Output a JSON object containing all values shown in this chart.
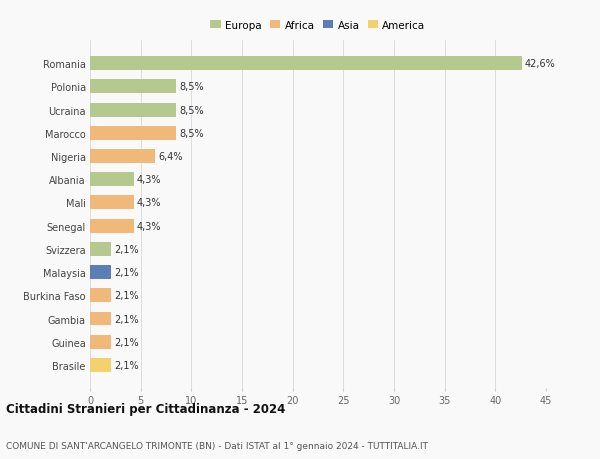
{
  "categories": [
    "Romania",
    "Polonia",
    "Ucraina",
    "Marocco",
    "Nigeria",
    "Albania",
    "Mali",
    "Senegal",
    "Svizzera",
    "Malaysia",
    "Burkina Faso",
    "Gambia",
    "Guinea",
    "Brasile"
  ],
  "values": [
    42.6,
    8.5,
    8.5,
    8.5,
    6.4,
    4.3,
    4.3,
    4.3,
    2.1,
    2.1,
    2.1,
    2.1,
    2.1,
    2.1
  ],
  "labels": [
    "42,6%",
    "8,5%",
    "8,5%",
    "8,5%",
    "6,4%",
    "4,3%",
    "4,3%",
    "4,3%",
    "2,1%",
    "2,1%",
    "2,1%",
    "2,1%",
    "2,1%",
    "2,1%"
  ],
  "colors": [
    "#b5c98e",
    "#b5c98e",
    "#b5c98e",
    "#f0b97a",
    "#f0b97a",
    "#b5c98e",
    "#f0b97a",
    "#f0b97a",
    "#b5c98e",
    "#5b7fb5",
    "#f0b97a",
    "#f0b97a",
    "#f0b97a",
    "#f5d06e"
  ],
  "legend_labels": [
    "Europa",
    "Africa",
    "Asia",
    "America"
  ],
  "legend_colors": [
    "#b5c98e",
    "#f0b97a",
    "#5b7fb5",
    "#f5d06e"
  ],
  "title": "Cittadini Stranieri per Cittadinanza - 2024",
  "subtitle": "COMUNE DI SANT'ARCANGELO TRIMONTE (BN) - Dati ISTAT al 1° gennaio 2024 - TUTTITALIA.IT",
  "xlim": [
    0,
    45
  ],
  "xticks": [
    0,
    5,
    10,
    15,
    20,
    25,
    30,
    35,
    40,
    45
  ],
  "bg_color": "#f9f9f9",
  "bar_height": 0.6,
  "grid_color": "#dddddd",
  "bar_label_fontsize": 7.0,
  "ytick_fontsize": 7.0,
  "xtick_fontsize": 7.0,
  "legend_fontsize": 7.5,
  "title_fontsize": 8.5,
  "subtitle_fontsize": 6.5
}
